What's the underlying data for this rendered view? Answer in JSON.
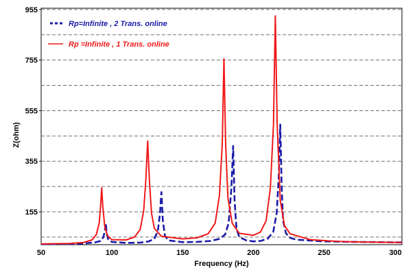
{
  "chart_data": {
    "type": "line",
    "title": "",
    "xlabel": "Frequency (Hz)",
    "ylabel": "Z(ohm)",
    "xlim": [
      50,
      305
    ],
    "ylim": [
      25,
      960
    ],
    "xticks": [
      50,
      100,
      150,
      200,
      250,
      300
    ],
    "yticks": [
      155,
      355,
      555,
      755,
      955
    ],
    "ytick_labels": [
      "155",
      "355",
      "555",
      "755",
      "955"
    ],
    "xtick_labels": [
      "50",
      "100",
      "150",
      "200",
      "250",
      "300"
    ],
    "grid": "horizontal-dashed",
    "legend_position": "top-left",
    "series": [
      {
        "name": "Rp=Infinite , 2 Trans. online",
        "color": "#1a1aa8",
        "style": "dashed",
        "points": [
          [
            50,
            27
          ],
          [
            70,
            28
          ],
          [
            80,
            30
          ],
          [
            88,
            34
          ],
          [
            92,
            40
          ],
          [
            94,
            55
          ],
          [
            95,
            80
          ],
          [
            95.7,
            110
          ],
          [
            96.3,
            70
          ],
          [
            97.5,
            45
          ],
          [
            100,
            36
          ],
          [
            110,
            32
          ],
          [
            120,
            33
          ],
          [
            126,
            38
          ],
          [
            130,
            48
          ],
          [
            132.5,
            80
          ],
          [
            134,
            150
          ],
          [
            135,
            233
          ],
          [
            136,
            120
          ],
          [
            137.5,
            60
          ],
          [
            140,
            42
          ],
          [
            150,
            35
          ],
          [
            160,
            36
          ],
          [
            170,
            40
          ],
          [
            176,
            48
          ],
          [
            180,
            65
          ],
          [
            182.5,
            110
          ],
          [
            184.5,
            250
          ],
          [
            185.7,
            415
          ],
          [
            186.7,
            200
          ],
          [
            188,
            90
          ],
          [
            190,
            55
          ],
          [
            195,
            42
          ],
          [
            200,
            38
          ],
          [
            205,
            40
          ],
          [
            210,
            48
          ],
          [
            214,
            75
          ],
          [
            216.5,
            150
          ],
          [
            218,
            300
          ],
          [
            219,
            500
          ],
          [
            220,
            250
          ],
          [
            221,
            120
          ],
          [
            223,
            70
          ],
          [
            226,
            52
          ],
          [
            230,
            45
          ],
          [
            250,
            38
          ],
          [
            270,
            36
          ],
          [
            290,
            35
          ],
          [
            305,
            34
          ]
        ]
      },
      {
        "name": "Rp =Infinite , 1 Trans. online",
        "color": "#f01818",
        "style": "solid",
        "points": [
          [
            50,
            28
          ],
          [
            70,
            30
          ],
          [
            80,
            34
          ],
          [
            86,
            44
          ],
          [
            89,
            65
          ],
          [
            91,
            110
          ],
          [
            92,
            175
          ],
          [
            92.8,
            250
          ],
          [
            93.6,
            175
          ],
          [
            95,
            95
          ],
          [
            97,
            60
          ],
          [
            100,
            45
          ],
          [
            110,
            44
          ],
          [
            116,
            55
          ],
          [
            120,
            85
          ],
          [
            122.5,
            160
          ],
          [
            124,
            280
          ],
          [
            125.3,
            435
          ],
          [
            126.5,
            280
          ],
          [
            128,
            150
          ],
          [
            130,
            90
          ],
          [
            135,
            58
          ],
          [
            150,
            48
          ],
          [
            160,
            52
          ],
          [
            168,
            68
          ],
          [
            173,
            110
          ],
          [
            176,
            220
          ],
          [
            178,
            420
          ],
          [
            179.2,
            760
          ],
          [
            180.4,
            420
          ],
          [
            182,
            210
          ],
          [
            185,
            110
          ],
          [
            190,
            70
          ],
          [
            200,
            62
          ],
          [
            205,
            75
          ],
          [
            209,
            120
          ],
          [
            212,
            250
          ],
          [
            214.2,
            500
          ],
          [
            215.5,
            930
          ],
          [
            216.8,
            500
          ],
          [
            219,
            200
          ],
          [
            222,
            100
          ],
          [
            226,
            68
          ],
          [
            240,
            45
          ],
          [
            260,
            38
          ],
          [
            280,
            35
          ],
          [
            305,
            34
          ]
        ]
      }
    ]
  }
}
